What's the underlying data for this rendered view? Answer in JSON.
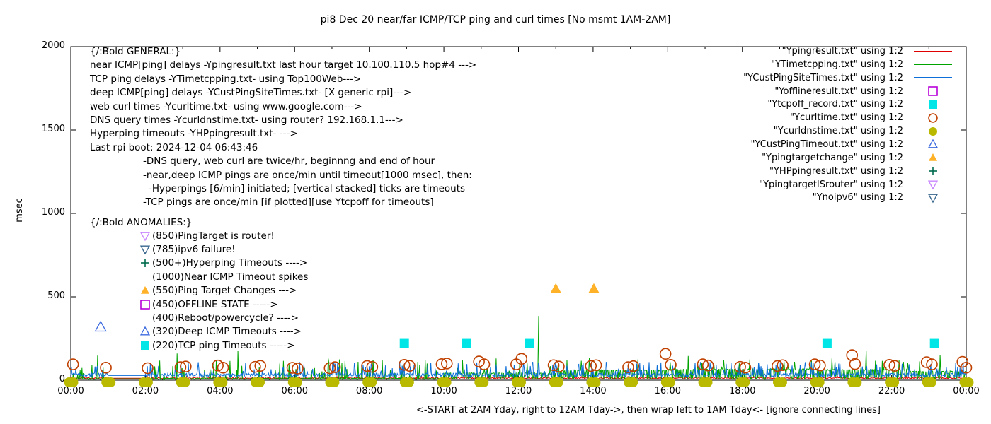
{
  "title": "pi8 Dec 20  near/far ICMP/TCP ping and curl times [No msmt 1AM-2AM]",
  "y_axis": {
    "label": "msec",
    "tick_labels": [
      "0",
      "500",
      "1000",
      "1500",
      "2000"
    ],
    "tick_values": [
      0,
      500,
      1000,
      1500,
      2000
    ]
  },
  "x_axis": {
    "label": "<-START at 2AM Yday, right to 12AM Tday->, then wrap left to 1AM Tday<- [ignore connecting lines]",
    "tick_labels": [
      "00:00",
      "02:00",
      "04:00",
      "06:00",
      "08:00",
      "10:00",
      "12:00",
      "14:00",
      "16:00",
      "18:00",
      "20:00",
      "22:00",
      "00:00"
    ],
    "tick_hours": [
      0,
      2,
      4,
      6,
      8,
      10,
      12,
      14,
      16,
      18,
      20,
      22,
      24
    ]
  },
  "legend": {
    "entries": [
      {
        "label": "\"Ypingresult.txt\" using 1:2",
        "marker": "line",
        "color": "#e10000"
      },
      {
        "label": "\"YTimetcpping.txt\" using 1:2",
        "marker": "line",
        "color": "#00a400"
      },
      {
        "label": "\"YCustPingSiteTimes.txt\" using 1:2",
        "marker": "line",
        "color": "#0d6fd8"
      },
      {
        "label": "\"Yofflineresult.txt\" using 1:2",
        "marker": "square-open",
        "color": "#b800d8"
      },
      {
        "label": "\"Ytcpoff_record.txt\" using 1:2",
        "marker": "square-filled",
        "color": "#00e6e6"
      },
      {
        "label": "\"Ycurltime.txt\" using 1:2",
        "marker": "circle-open",
        "color": "#c04000"
      },
      {
        "label": "\"Ycurldnstime.txt\" using 1:2",
        "marker": "circle-filled",
        "color": "#b9b900"
      },
      {
        "label": "\"YCustPingTimeout.txt\" using 1:2",
        "marker": "tri-up-open",
        "color": "#3c6adf"
      },
      {
        "label": "\"Ypingtargetchange\" using 1:2",
        "marker": "tri-up-filled",
        "color": "#ffb127"
      },
      {
        "label": "\"YHPpingresult.txt\" using 1:2",
        "marker": "plus",
        "color": "#006a4e"
      },
      {
        "label": "\"YpingtargetISrouter\" using 1:2",
        "marker": "tri-down-open",
        "color": "#c885ff"
      },
      {
        "label": "\"Ynoipv6\" using 1:2",
        "marker": "tri-down-open",
        "color": "#36648b"
      }
    ]
  },
  "annotations": {
    "general_title": "{/:Bold GENERAL:}",
    "general": [
      {
        "indent": 0,
        "text": "near ICMP[ping] delays -Ypingresult.txt last hour target 10.100.110.5 hop#4 --->"
      },
      {
        "indent": 0,
        "text": "TCP ping delays -YTimetcpping.txt- using Top100Web--->"
      },
      {
        "indent": 0,
        "text": "deep ICMP[ping] delays -YCustPingSiteTimes.txt- [X generic rpi]--->"
      },
      {
        "indent": 0,
        "text": "web curl times -Ycurltime.txt- using www.google.com--->"
      },
      {
        "indent": 0,
        "text": "DNS query times -Ycurldnstime.txt- using router? 192.168.1.1--->"
      },
      {
        "indent": 0,
        "text": "Hyperping timeouts -YHPpingresult.txt- --->"
      },
      {
        "indent": 0,
        "text": "Last rpi boot: 2024-12-04 06:43:46"
      },
      {
        "indent": 1,
        "text": "-DNS query, web curl are twice/hr, beginnng and end of hour"
      },
      {
        "indent": 1,
        "text": "-near,deep ICMP pings are once/min until timeout[1000 msec], then:"
      },
      {
        "indent": 2,
        "text": "-Hyperpings [6/min] initiated; [vertical stacked] ticks are timeouts"
      },
      {
        "indent": 1,
        "text": "-TCP pings are once/min [if plotted][use Ytcpoff for timeouts]"
      }
    ],
    "anomalies_title": "{/:Bold ANOMALIES:}",
    "anomalies": [
      {
        "marker": "tri-down-open",
        "color": "#c885ff",
        "text": "(850)PingTarget is router!"
      },
      {
        "marker": "tri-down-open",
        "color": "#36648b",
        "text": "(785)ipv6 failure!"
      },
      {
        "marker": "plus",
        "color": "#006a4e",
        "text": "(500+)Hyperping Timeouts ---->"
      },
      {
        "marker": "none",
        "color": "",
        "text": "(1000)Near ICMP Timeout spikes"
      },
      {
        "marker": "tri-up-filled",
        "color": "#ffb127",
        "text": "(550)Ping Target Changes --->"
      },
      {
        "marker": "square-open",
        "color": "#b800d8",
        "text": "(450)OFFLINE STATE ----->"
      },
      {
        "marker": "none",
        "color": "",
        "text": "(400)Reboot/powercycle? ---->"
      },
      {
        "marker": "tri-up-open",
        "color": "#3c6adf",
        "text": "(320)Deep ICMP Timeouts ---->"
      },
      {
        "marker": "square-filled",
        "color": "#00e6e6",
        "text": "(220)TCP ping Timeouts ----->"
      }
    ]
  },
  "chart_data": {
    "type": "line",
    "title": "pi8 Dec 20  near/far ICMP/TCP ping and curl times [No msmt 1AM-2AM]",
    "xlabel": "<-START at 2AM Yday, right to 12AM Tday->, then wrap left to 1AM Tday<- [ignore connecting lines]",
    "ylabel": "msec",
    "xlim_hours": [
      0,
      24
    ],
    "ylim": [
      0,
      2000
    ],
    "grid": false,
    "legend_position": "inside top right",
    "no_measurement_gap_hours": [
      1,
      2
    ],
    "series": [
      {
        "name": "Ypingresult.txt",
        "style": "line",
        "color": "#e10000",
        "gen": {
          "type": "flat-noise",
          "seed": 11,
          "base": 9,
          "amp": 7,
          "gap_value": 12
        },
        "summary_msec": "near ICMP ping ~9-18 msec flat all 24h"
      },
      {
        "name": "YTimetcpping.txt",
        "style": "line",
        "color": "#00a400",
        "gen": {
          "type": "steps",
          "seed": 22,
          "gap_value": 8,
          "steps": [
            [
              0,
              8
            ],
            [
              10,
              42
            ],
            [
              13,
              58
            ],
            [
              16,
              65
            ],
            [
              20,
              62
            ],
            [
              22.5,
              53
            ]
          ],
          "spikes": [
            [
              0.72,
              148
            ],
            [
              2.85,
              160
            ],
            [
              3.9,
              120
            ],
            [
              4.48,
              175
            ],
            [
              5.6,
              100
            ],
            [
              6.9,
              130
            ],
            [
              7.7,
              110
            ],
            [
              8.35,
              120
            ],
            [
              9.3,
              110
            ],
            [
              10.5,
              120
            ],
            [
              11.4,
              130
            ],
            [
              12.54,
              385
            ],
            [
              13.3,
              120
            ],
            [
              13.9,
              135
            ],
            [
              15.2,
              125
            ],
            [
              16.55,
              145
            ],
            [
              17.5,
              120
            ],
            [
              18.2,
              125
            ],
            [
              19.4,
              110
            ],
            [
              20.4,
              130
            ],
            [
              21.32,
              178
            ],
            [
              22.2,
              120
            ],
            [
              23.3,
              150
            ]
          ]
        },
        "summary_msec": "TCP ping: low early, elevated 40-65 msec band after ~10:00, spikes listed"
      },
      {
        "name": "YCustPingSiteTimes.txt",
        "style": "line",
        "color": "#0d6fd8",
        "gen": {
          "type": "noise",
          "seed": 33,
          "base": 20,
          "amp": 22,
          "spike_chance": 0.09,
          "spike_amp": 60,
          "gap_value": 28
        },
        "summary_msec": "deep ICMP ping 20-60 msec noise, spikes to ~115, denser after 12:00"
      },
      {
        "name": "Yofflineresult.txt",
        "style": "square-open",
        "color": "#b800d8",
        "points": []
      },
      {
        "name": "Ytcpoff_record.txt",
        "style": "square-filled",
        "color": "#00e6e6",
        "points": [
          [
            8.94,
            220
          ],
          [
            10.61,
            220
          ],
          [
            12.3,
            220
          ],
          [
            20.27,
            220
          ],
          [
            23.15,
            220
          ]
        ]
      },
      {
        "name": "Ycurltime.txt",
        "style": "circle-open",
        "color": "#c04000",
        "points": [
          [
            0.06,
            95
          ],
          [
            0.94,
            75
          ],
          [
            2.06,
            72
          ],
          [
            2.94,
            78
          ],
          [
            3.08,
            82
          ],
          [
            3.94,
            88
          ],
          [
            4.08,
            75
          ],
          [
            4.94,
            80
          ],
          [
            5.08,
            86
          ],
          [
            5.94,
            74
          ],
          [
            6.08,
            70
          ],
          [
            6.94,
            72
          ],
          [
            7.08,
            78
          ],
          [
            7.94,
            85
          ],
          [
            8.08,
            80
          ],
          [
            8.94,
            92
          ],
          [
            9.08,
            86
          ],
          [
            9.94,
            96
          ],
          [
            10.08,
            100
          ],
          [
            10.94,
            112
          ],
          [
            11.08,
            95
          ],
          [
            11.94,
            95
          ],
          [
            12.08,
            128
          ],
          [
            12.94,
            90
          ],
          [
            13.08,
            82
          ],
          [
            13.94,
            85
          ],
          [
            14.08,
            90
          ],
          [
            14.94,
            78
          ],
          [
            15.08,
            84
          ],
          [
            15.94,
            158
          ],
          [
            16.08,
            92
          ],
          [
            16.94,
            95
          ],
          [
            17.08,
            88
          ],
          [
            17.94,
            80
          ],
          [
            18.08,
            75
          ],
          [
            18.94,
            85
          ],
          [
            19.08,
            90
          ],
          [
            19.94,
            95
          ],
          [
            20.08,
            88
          ],
          [
            20.94,
            150
          ],
          [
            21.02,
            97
          ],
          [
            21.94,
            92
          ],
          [
            22.08,
            86
          ],
          [
            22.94,
            108
          ],
          [
            23.08,
            95
          ],
          [
            23.9,
            110
          ],
          [
            24.0,
            75
          ]
        ]
      },
      {
        "name": "Ycurldnstime.txt",
        "style": "circle-filled",
        "color": "#b9b900",
        "per_hour": 2,
        "hours": [
          0,
          1,
          2,
          3,
          4,
          5,
          6,
          7,
          8,
          9,
          10,
          11,
          12,
          13,
          14,
          15,
          16,
          17,
          18,
          19,
          20,
          21,
          22,
          23,
          24
        ],
        "value_msec": 2
      },
      {
        "name": "YCustPingTimeout.txt",
        "style": "tri-up-open",
        "color": "#3c6adf",
        "points": [
          [
            0.8,
            320
          ]
        ]
      },
      {
        "name": "Ypingtargetchange",
        "style": "tri-up-filled",
        "color": "#ffb127",
        "points": [
          [
            13.0,
            550
          ],
          [
            14.02,
            550
          ]
        ]
      },
      {
        "name": "YHPpingresult.txt",
        "style": "plus",
        "color": "#006a4e",
        "points": []
      },
      {
        "name": "YpingtargetISrouter",
        "style": "tri-down-open",
        "color": "#c885ff",
        "points": []
      },
      {
        "name": "Ynoipv6",
        "style": "tri-down-open",
        "color": "#36648b",
        "points": []
      }
    ]
  }
}
